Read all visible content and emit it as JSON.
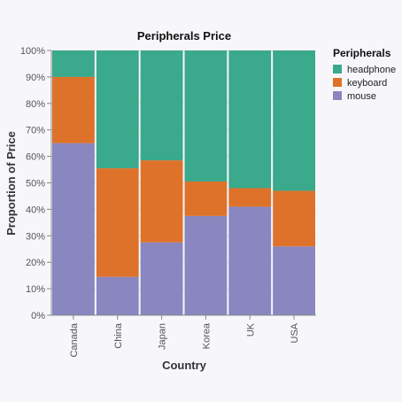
{
  "chart_data": {
    "type": "bar",
    "stacked": true,
    "normalized": true,
    "title": "Peripherals Price",
    "xlabel": "Country",
    "ylabel": "Proportion of Price",
    "ylim": [
      0,
      1
    ],
    "y_ticks": [
      "0%",
      "10%",
      "20%",
      "30%",
      "40%",
      "50%",
      "60%",
      "70%",
      "80%",
      "90%",
      "100%"
    ],
    "categories": [
      "Canada",
      "China",
      "Japan",
      "Korea",
      "UK",
      "USA"
    ],
    "legend": {
      "title": "Peripherals",
      "position": "right"
    },
    "series": [
      {
        "name": "mouse",
        "color": "#8986c0",
        "values": [
          0.65,
          0.145,
          0.275,
          0.375,
          0.41,
          0.26
        ]
      },
      {
        "name": "keyboard",
        "color": "#de722a",
        "values": [
          0.25,
          0.41,
          0.31,
          0.13,
          0.07,
          0.21
        ]
      },
      {
        "name": "headphone",
        "color": "#3aa98c",
        "values": [
          0.1,
          0.445,
          0.415,
          0.495,
          0.52,
          0.53
        ]
      }
    ],
    "legend_order": [
      "headphone",
      "keyboard",
      "mouse"
    ]
  }
}
